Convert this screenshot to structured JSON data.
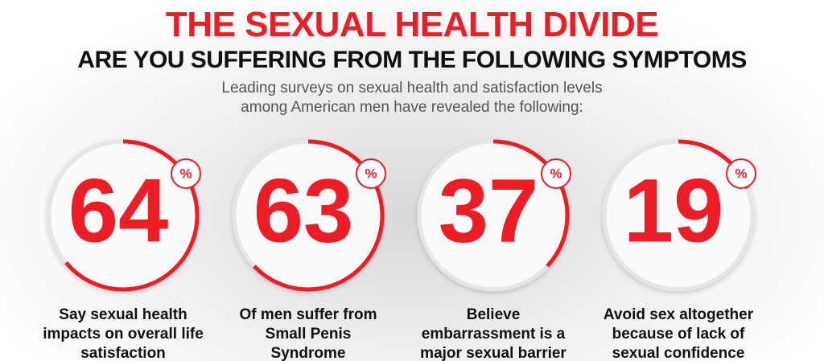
{
  "header": {
    "title": "THE SEXUAL HEALTH DIVIDE",
    "subtitle": "ARE YOU SUFFERING FROM THE FOLLOWING SYMPTOMS",
    "intro": "Leading surveys on sexual health and satisfaction levels among American men have revealed the following:"
  },
  "stats": [
    {
      "value": 64,
      "unit": "%",
      "caption": "Say sexual health impacts on overall life satisfaction"
    },
    {
      "value": 63,
      "unit": "%",
      "caption": "Of men suffer from Small Penis Syndrome"
    },
    {
      "value": 37,
      "unit": "%",
      "caption": "Believe embarrassment is a major sexual barrier"
    },
    {
      "value": 19,
      "unit": "%",
      "caption": "Avoid sex altogether because of lack of sexual confidence"
    }
  ]
}
